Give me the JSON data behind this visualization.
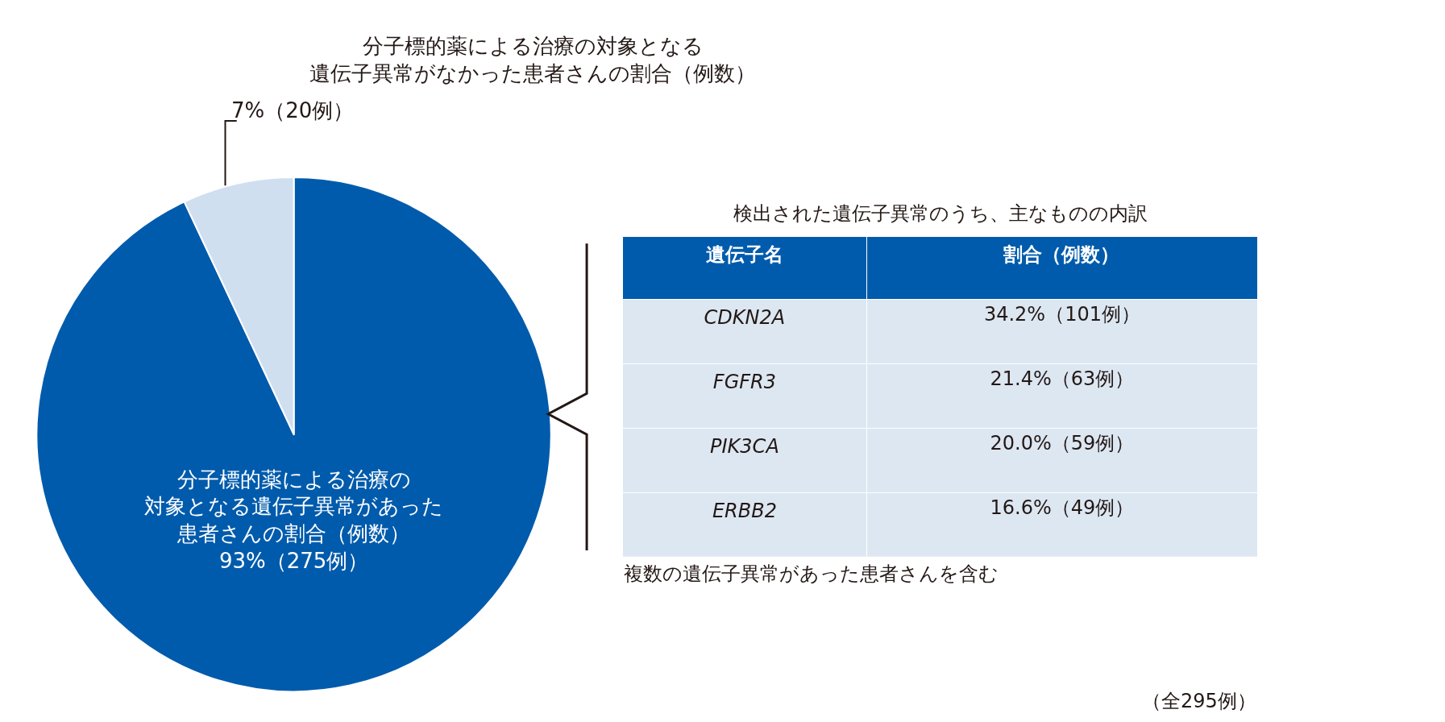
{
  "chart_data": [
    {
      "type": "pie",
      "categories": [
        "分子標的薬による治療の対象となる遺伝子異常があった患者さんの割合（例数）",
        "分子標的薬による治療の対象となる遺伝子異常がなかった患者さんの割合（例数）"
      ],
      "values": [
        93,
        7
      ],
      "value_labels": [
        "93%（275例）",
        "7%（20例）"
      ],
      "colors": [
        "#005bac",
        "#cfdff0"
      ]
    },
    {
      "type": "other",
      "title": "検出された遺伝子異常のうち、主なものの内訳",
      "xlabel": "遺伝子名",
      "ylabel": "割合（例数）",
      "categories": [
        "CDKN2A",
        "FGFR3",
        "PIK3CA",
        "ERBB2"
      ],
      "value_labels": [
        "34.2%（101例）",
        "21.4%（63例）",
        "20.0%（59例）",
        "16.6%（49例）"
      ],
      "annotations": [
        "複数の遺伝子異常があった患者さんを含む",
        "（全295例）"
      ]
    }
  ]
}
